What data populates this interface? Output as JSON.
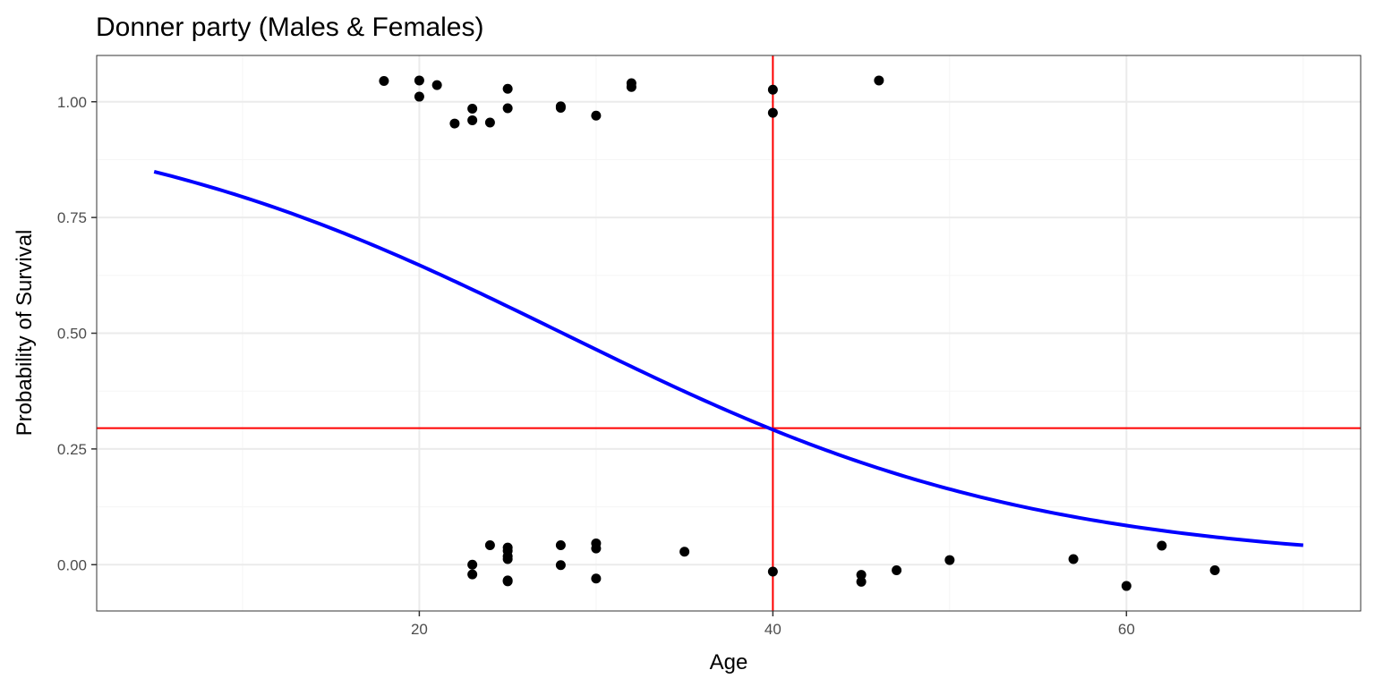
{
  "chart_data": {
    "type": "scatter",
    "title": "Donner party (Males & Females)",
    "xlabel": "Age",
    "ylabel": "Probability of Survival",
    "xlim": [
      1.75,
      73.25
    ],
    "ylim": [
      -0.1,
      1.1
    ],
    "x_ticks": [
      20,
      40,
      60
    ],
    "x_minor_ticks": [
      10,
      30,
      50,
      70
    ],
    "y_ticks": [
      0.0,
      0.25,
      0.5,
      0.75,
      1.0
    ],
    "y_tick_labels": [
      "0.00",
      "0.25",
      "0.50",
      "0.75",
      "1.00"
    ],
    "y_minor_ticks": [
      0.125,
      0.375,
      0.625,
      0.875
    ],
    "grid": true,
    "points": [
      {
        "x": 18,
        "y": 1.045
      },
      {
        "x": 20,
        "y": 1.046
      },
      {
        "x": 20,
        "y": 1.011
      },
      {
        "x": 21,
        "y": 1.036
      },
      {
        "x": 22,
        "y": 0.953
      },
      {
        "x": 23,
        "y": 0.985
      },
      {
        "x": 23,
        "y": 0.96
      },
      {
        "x": 24,
        "y": 0.955
      },
      {
        "x": 25,
        "y": 1.028
      },
      {
        "x": 25,
        "y": 0.986
      },
      {
        "x": 28,
        "y": 0.99
      },
      {
        "x": 28,
        "y": 0.987
      },
      {
        "x": 30,
        "y": 0.97
      },
      {
        "x": 32,
        "y": 1.04
      },
      {
        "x": 32,
        "y": 1.032
      },
      {
        "x": 40,
        "y": 1.026
      },
      {
        "x": 40,
        "y": 0.976
      },
      {
        "x": 46,
        "y": 1.046
      },
      {
        "x": 23,
        "y": 0.0
      },
      {
        "x": 23,
        "y": -0.021
      },
      {
        "x": 24,
        "y": 0.042
      },
      {
        "x": 25,
        "y": 0.037
      },
      {
        "x": 25,
        "y": 0.03
      },
      {
        "x": 25,
        "y": 0.018
      },
      {
        "x": 25,
        "y": 0.012
      },
      {
        "x": 25,
        "y": -0.034
      },
      {
        "x": 25,
        "y": -0.036
      },
      {
        "x": 28,
        "y": 0.042
      },
      {
        "x": 28,
        "y": -0.001
      },
      {
        "x": 30,
        "y": 0.046
      },
      {
        "x": 30,
        "y": 0.035
      },
      {
        "x": 30,
        "y": -0.03
      },
      {
        "x": 35,
        "y": 0.028
      },
      {
        "x": 40,
        "y": -0.015
      },
      {
        "x": 45,
        "y": -0.022
      },
      {
        "x": 45,
        "y": -0.037
      },
      {
        "x": 47,
        "y": -0.012
      },
      {
        "x": 50,
        "y": 0.01
      },
      {
        "x": 57,
        "y": 0.012
      },
      {
        "x": 60,
        "y": -0.046
      },
      {
        "x": 62,
        "y": 0.041
      },
      {
        "x": 65,
        "y": -0.012
      }
    ],
    "curve": {
      "type": "logistic",
      "color": "#0000ff",
      "intercept": 2.1,
      "slope": -0.0747,
      "x_range": [
        5,
        70
      ]
    },
    "reference_lines": [
      {
        "orientation": "vertical",
        "x": 40,
        "color": "#ff0000"
      },
      {
        "orientation": "horizontal",
        "y": 0.295,
        "color": "#ff0000"
      }
    ],
    "colors": {
      "points": "#000000",
      "grid_major": "#ebebeb",
      "grid_minor": "#f5f5f5",
      "panel_border": "#333333"
    }
  }
}
